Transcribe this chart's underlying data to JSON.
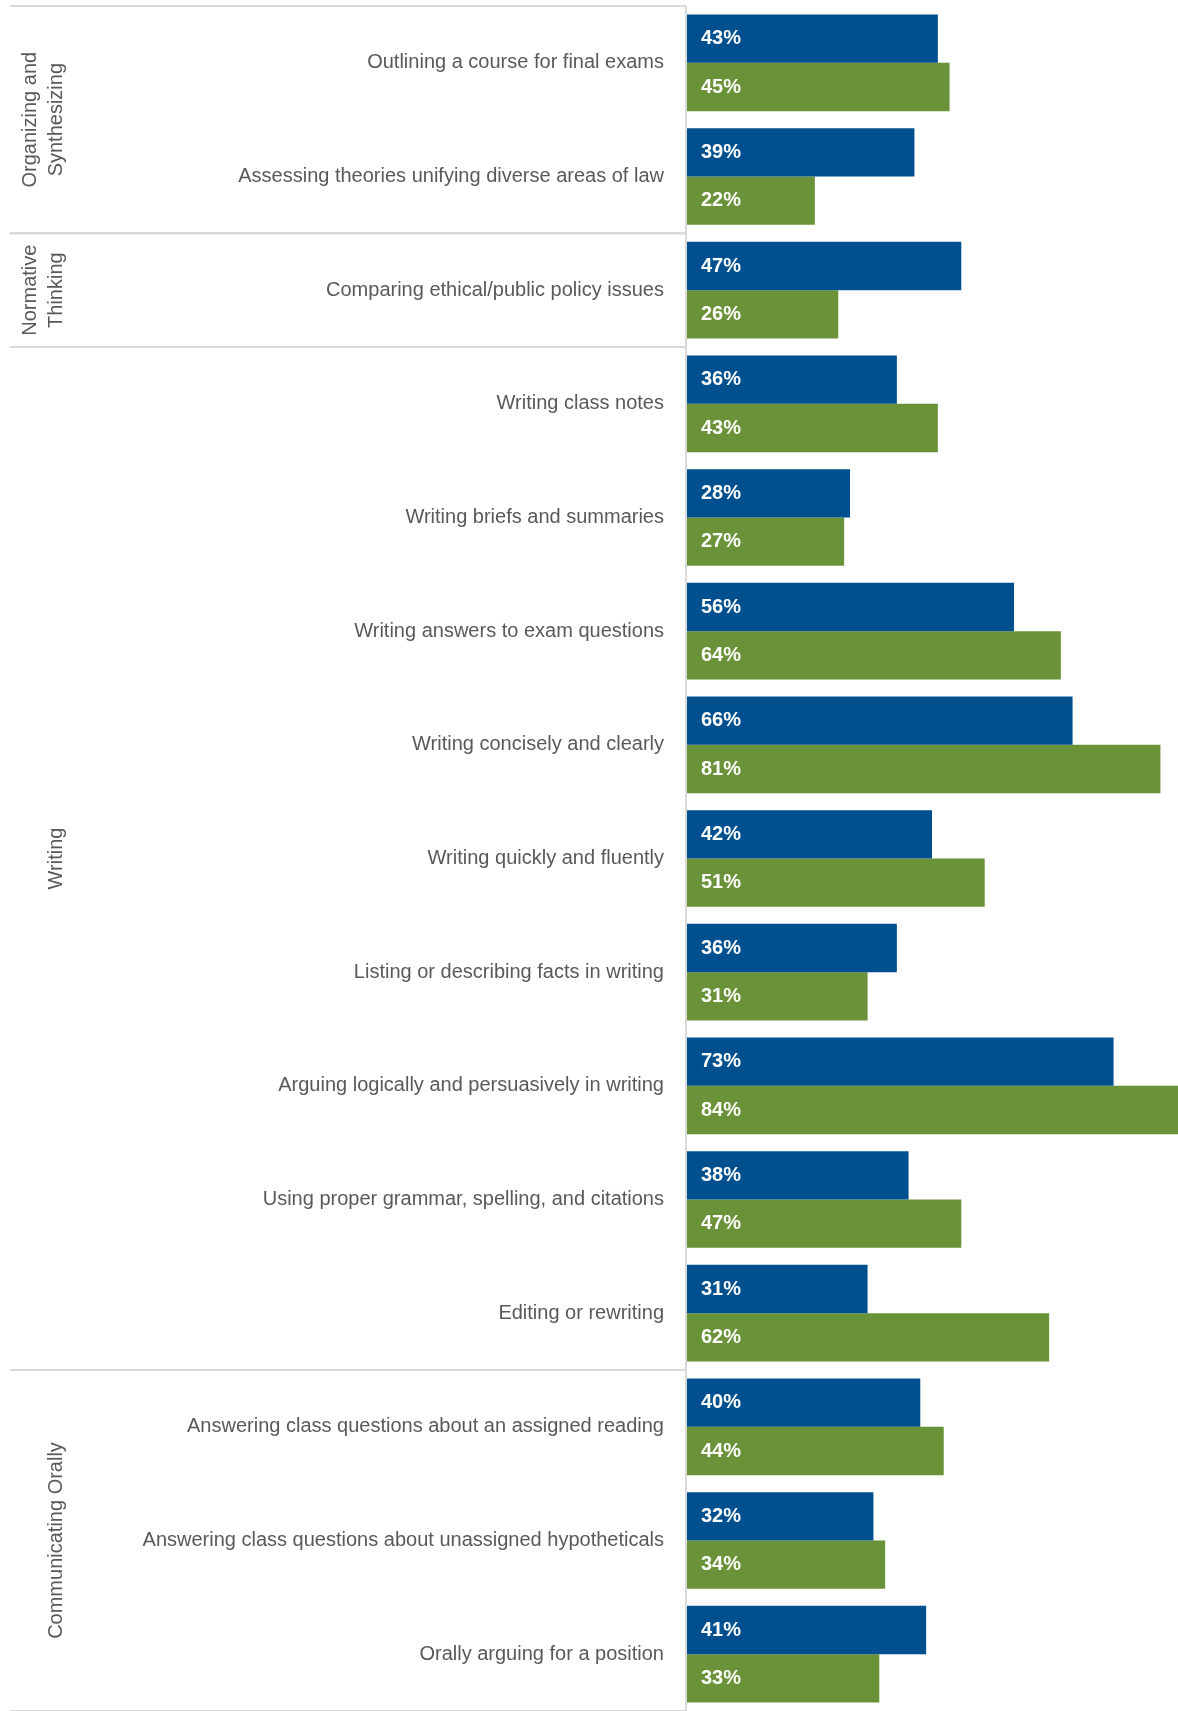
{
  "chart_data": {
    "type": "bar",
    "orientation": "horizontal",
    "categories": [
      "Outlining a course for final exams",
      "Assessing theories unifying diverse areas of law",
      "Comparing ethical/public policy issues",
      "Writing class notes",
      "Writing briefs and summaries",
      "Writing answers to exam questions",
      "Writing concisely and clearly",
      "Writing quickly and fluently",
      "Listing or describing facts in writing",
      "Arguing logically and persuasively in writing",
      "Using proper grammar, spelling, and citations",
      "Editing or rewriting",
      "Answering class questions about an assigned reading",
      "Answering class questions about unassigned hypotheticals",
      "Orally arguing for a position"
    ],
    "series": [
      {
        "color": "#00508f",
        "values": [
          43,
          39,
          47,
          36,
          28,
          56,
          66,
          42,
          36,
          73,
          38,
          31,
          40,
          32,
          41
        ],
        "value_labels": [
          "43%",
          "39%",
          "47%",
          "36%",
          "28%",
          "56%",
          "66%",
          "42%",
          "36%",
          "73%",
          "38%",
          "31%",
          "40%",
          "32%",
          "41%"
        ]
      },
      {
        "color": "#6a9339",
        "values": [
          45,
          22,
          26,
          43,
          27,
          64,
          81,
          51,
          31,
          84,
          47,
          62,
          44,
          34,
          33
        ],
        "value_labels": [
          "45%",
          "22%",
          "26%",
          "43%",
          "27%",
          "64%",
          "81%",
          "51%",
          "31%",
          "84%",
          "47%",
          "62%",
          "44%",
          "34%",
          "33%"
        ]
      }
    ],
    "xlim": [
      0,
      84
    ],
    "annotations": [
      "Organizing and Synthesizing",
      "Normative Thinking",
      "Writing",
      "Communicating Orally"
    ],
    "legend": false
  }
}
